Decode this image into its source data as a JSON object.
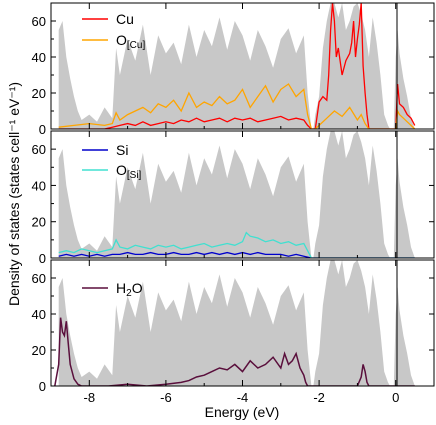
{
  "chart_data": {
    "type": "area",
    "xlabel": "Energy (eV)",
    "ylabel": "Density of states (states cell⁻¹ eV⁻¹)",
    "xlim": [
      -9.0,
      1.0
    ],
    "x_ticks": [
      -8,
      -6,
      -4,
      -2,
      0
    ],
    "x_tick_labels": [
      "-8",
      "-6",
      "-4",
      "-2",
      "0"
    ],
    "fermi_level": 0,
    "shared_x": true,
    "panels": [
      {
        "ylim": [
          0,
          70
        ],
        "y_ticks": [
          0,
          20,
          40,
          60
        ],
        "y_tick_labels": [
          "0",
          "20",
          "40",
          "60"
        ],
        "legend_position": "top-left",
        "total_dos_color": "#c8c8c8",
        "series": [
          {
            "name": "Cu",
            "subscript": "",
            "color": "#ff0000"
          },
          {
            "name": "O",
            "subscript": "[Cu]",
            "color": "#ffa500"
          }
        ]
      },
      {
        "ylim": [
          0,
          70
        ],
        "y_ticks": [
          0,
          20,
          40,
          60
        ],
        "y_tick_labels": [
          "0",
          "20",
          "40",
          "60"
        ],
        "legend_position": "top-left",
        "total_dos_color": "#c8c8c8",
        "series": [
          {
            "name": "Si",
            "subscript": "",
            "color": "#0000cc"
          },
          {
            "name": "O",
            "subscript": "[Si]",
            "color": "#40e0d0"
          }
        ]
      },
      {
        "ylim": [
          0,
          70
        ],
        "y_ticks": [
          0,
          20,
          40,
          60
        ],
        "y_tick_labels": [
          "0",
          "20",
          "40",
          "60"
        ],
        "legend_position": "top-left",
        "total_dos_color": "#c8c8c8",
        "series": [
          {
            "name": "H",
            "subscript": "2",
            "suffix": "O",
            "color": "#5a0f3c"
          }
        ]
      }
    ],
    "total_dos": {
      "x": [
        -8.8,
        -8.7,
        -8.6,
        -8.5,
        -8.4,
        -8.3,
        -8.2,
        -8.0,
        -7.8,
        -7.6,
        -7.4,
        -7.3,
        -7.2,
        -7.0,
        -6.8,
        -6.6,
        -6.4,
        -6.2,
        -6.0,
        -5.8,
        -5.6,
        -5.4,
        -5.2,
        -5.0,
        -4.8,
        -4.6,
        -4.4,
        -4.2,
        -4.0,
        -3.8,
        -3.6,
        -3.4,
        -3.2,
        -3.0,
        -2.8,
        -2.6,
        -2.4,
        -2.3,
        -2.2,
        -2.15,
        -2.1,
        -2.0,
        -1.9,
        -1.8,
        -1.7,
        -1.6,
        -1.5,
        -1.4,
        -1.3,
        -1.2,
        -1.1,
        -1.0,
        -0.9,
        -0.8,
        -0.7,
        -0.6,
        -0.5,
        -0.4,
        -0.3,
        -0.2,
        -0.15,
        -0.1,
        -0.05,
        0.0,
        0.05,
        0.1,
        0.2,
        0.3,
        0.4,
        0.5
      ],
      "y": [
        55,
        60,
        40,
        28,
        18,
        10,
        5,
        8,
        4,
        12,
        6,
        45,
        30,
        50,
        38,
        58,
        30,
        52,
        42,
        48,
        36,
        58,
        40,
        55,
        46,
        62,
        44,
        60,
        52,
        38,
        55,
        46,
        34,
        50,
        56,
        42,
        52,
        20,
        0,
        0,
        8,
        18,
        45,
        60,
        70,
        70,
        62,
        70,
        55,
        60,
        68,
        70,
        64,
        55,
        40,
        62,
        48,
        30,
        8,
        2,
        0,
        0,
        0,
        40,
        55,
        42,
        28,
        18,
        6,
        0
      ]
    },
    "cu_dos": {
      "x": [
        -8.8,
        -8.4,
        -8.0,
        -7.6,
        -7.4,
        -7.2,
        -7.0,
        -6.8,
        -6.6,
        -6.4,
        -6.2,
        -6.0,
        -5.8,
        -5.6,
        -5.4,
        -5.2,
        -5.0,
        -4.8,
        -4.6,
        -4.4,
        -4.2,
        -4.0,
        -3.8,
        -3.6,
        -3.4,
        -3.2,
        -3.0,
        -2.8,
        -2.6,
        -2.4,
        -2.3,
        -2.2,
        -2.1,
        -2.0,
        -1.9,
        -1.8,
        -1.75,
        -1.7,
        -1.65,
        -1.6,
        -1.55,
        -1.5,
        -1.4,
        -1.3,
        -1.2,
        -1.15,
        -1.1,
        -1.05,
        -1.0,
        -0.95,
        -0.9,
        -0.85,
        -0.8,
        -0.75,
        -0.7,
        -0.6,
        -0.5,
        -0.3,
        -0.2,
        -0.1,
        -0.05,
        0.0,
        0.05,
        0.1,
        0.2,
        0.3,
        0.4,
        0.5
      ],
      "y": [
        0,
        0,
        0,
        0,
        1,
        2,
        3,
        2,
        4,
        2,
        3,
        4,
        3,
        5,
        4,
        6,
        4,
        5,
        6,
        4,
        6,
        5,
        6,
        4,
        5,
        6,
        7,
        5,
        6,
        5,
        2,
        0,
        0,
        15,
        18,
        16,
        30,
        55,
        70,
        60,
        40,
        45,
        30,
        38,
        42,
        48,
        60,
        40,
        50,
        58,
        70,
        35,
        20,
        8,
        0,
        0,
        0,
        0,
        0,
        0,
        0,
        0,
        25,
        14,
        12,
        8,
        6,
        2
      ]
    },
    "o_cu_dos": {
      "x": [
        -8.8,
        -8.4,
        -8.0,
        -7.6,
        -7.4,
        -7.3,
        -7.2,
        -7.0,
        -6.8,
        -6.6,
        -6.4,
        -6.2,
        -6.0,
        -5.8,
        -5.6,
        -5.4,
        -5.2,
        -5.0,
        -4.8,
        -4.6,
        -4.4,
        -4.2,
        -4.0,
        -3.8,
        -3.6,
        -3.4,
        -3.2,
        -3.0,
        -2.8,
        -2.6,
        -2.4,
        -2.3,
        -2.2,
        -2.1,
        -2.0,
        -1.8,
        -1.6,
        -1.4,
        -1.2,
        -1.0,
        -0.9,
        -0.8,
        -0.7,
        -0.6,
        -0.5,
        -0.3,
        -0.1,
        0.0,
        0.05,
        0.1,
        0.2,
        0.3,
        0.4,
        0.5
      ],
      "y": [
        1,
        2,
        3,
        2,
        3,
        9,
        5,
        8,
        10,
        12,
        9,
        14,
        12,
        16,
        10,
        20,
        12,
        15,
        13,
        18,
        14,
        16,
        22,
        12,
        18,
        24,
        15,
        22,
        25,
        18,
        22,
        8,
        0,
        0,
        2,
        6,
        10,
        7,
        12,
        5,
        8,
        3,
        0,
        0,
        0,
        0,
        0,
        0,
        10,
        8,
        6,
        4,
        2,
        0
      ]
    },
    "si_dos": {
      "x": [
        -8.8,
        -8.6,
        -8.4,
        -8.2,
        -8.0,
        -7.8,
        -7.6,
        -7.4,
        -7.2,
        -7.0,
        -6.8,
        -6.6,
        -6.4,
        -6.2,
        -6.0,
        -5.8,
        -5.6,
        -5.4,
        -5.2,
        -5.0,
        -4.8,
        -4.6,
        -4.4,
        -4.2,
        -4.0,
        -3.8,
        -3.6,
        -3.4,
        -3.2,
        -3.0,
        -2.8,
        -2.6,
        -2.4,
        -2.2,
        -2.0,
        -1.5,
        -1.0,
        -0.5,
        0.0,
        0.5
      ],
      "y": [
        1,
        2,
        1,
        2,
        1,
        2,
        1,
        2,
        2,
        3,
        2,
        2,
        3,
        2,
        2,
        3,
        2,
        2,
        3,
        2,
        3,
        2,
        3,
        2,
        3,
        2,
        3,
        2,
        2,
        2,
        1,
        2,
        1,
        0,
        0,
        0,
        0,
        0,
        0,
        0
      ]
    },
    "o_si_dos": {
      "x": [
        -8.8,
        -8.6,
        -8.4,
        -8.2,
        -8.0,
        -7.8,
        -7.6,
        -7.4,
        -7.3,
        -7.2,
        -7.0,
        -6.8,
        -6.6,
        -6.4,
        -6.2,
        -6.0,
        -5.8,
        -5.6,
        -5.4,
        -5.2,
        -5.0,
        -4.8,
        -4.6,
        -4.4,
        -4.2,
        -4.0,
        -3.9,
        -3.8,
        -3.6,
        -3.4,
        -3.2,
        -3.0,
        -2.8,
        -2.6,
        -2.4,
        -2.3,
        -2.2,
        -2.0,
        -1.5,
        -1.0,
        -0.5,
        0.0,
        0.5
      ],
      "y": [
        3,
        4,
        3,
        5,
        4,
        3,
        4,
        5,
        10,
        6,
        5,
        7,
        6,
        5,
        7,
        6,
        7,
        5,
        6,
        7,
        8,
        6,
        7,
        8,
        7,
        9,
        14,
        12,
        11,
        9,
        10,
        8,
        9,
        7,
        8,
        4,
        0,
        0,
        0,
        0,
        0,
        0,
        0
      ]
    },
    "h2o_dos": {
      "x": [
        -8.9,
        -8.8,
        -8.75,
        -8.7,
        -8.65,
        -8.6,
        -8.55,
        -8.5,
        -8.4,
        -8.3,
        -8.2,
        -8.0,
        -7.5,
        -7.0,
        -6.5,
        -6.0,
        -5.6,
        -5.4,
        -5.2,
        -5.0,
        -4.8,
        -4.6,
        -4.4,
        -4.2,
        -4.0,
        -3.8,
        -3.6,
        -3.4,
        -3.2,
        -3.0,
        -2.9,
        -2.8,
        -2.7,
        -2.6,
        -2.5,
        -2.4,
        -2.35,
        -2.3,
        -2.2,
        -2.0,
        -1.5,
        -1.0,
        -0.9,
        -0.85,
        -0.8,
        -0.75,
        -0.7,
        -0.6,
        -0.5,
        0.0,
        0.5
      ],
      "y": [
        0,
        12,
        38,
        30,
        28,
        36,
        24,
        12,
        4,
        1,
        0,
        0,
        0,
        1,
        0,
        1,
        2,
        3,
        5,
        6,
        8,
        10,
        9,
        12,
        8,
        14,
        10,
        12,
        16,
        10,
        18,
        12,
        14,
        18,
        10,
        6,
        2,
        0,
        0,
        0,
        0,
        0,
        5,
        12,
        8,
        2,
        0,
        0,
        0,
        0,
        0
      ]
    }
  }
}
